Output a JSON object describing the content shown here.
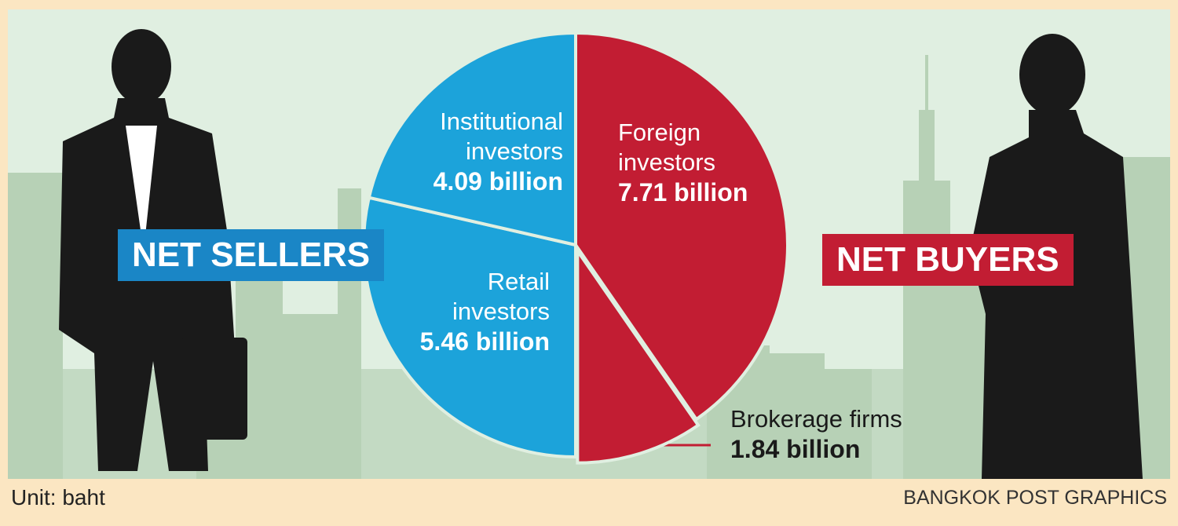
{
  "chart_data": {
    "type": "pie",
    "categories": [
      "Foreign investors",
      "Brokerage firms",
      "Retail investors",
      "Institutional investors"
    ],
    "values": [
      7.71,
      1.84,
      5.46,
      4.09
    ],
    "value_labels": [
      "7.71 billion",
      "1.84 billion",
      "5.46 billion",
      "4.09 billion"
    ],
    "colors": [
      "#c21d33",
      "#c21d33",
      "#1ca3da",
      "#1ca3da"
    ],
    "groups": [
      {
        "name": "NET BUYERS",
        "color": "#c21d33"
      },
      {
        "name": "NET SELLERS",
        "color": "#1a86c6"
      }
    ],
    "unit_note": "Unit: baht",
    "source": "BANGKOK POST GRAPHICS"
  }
}
